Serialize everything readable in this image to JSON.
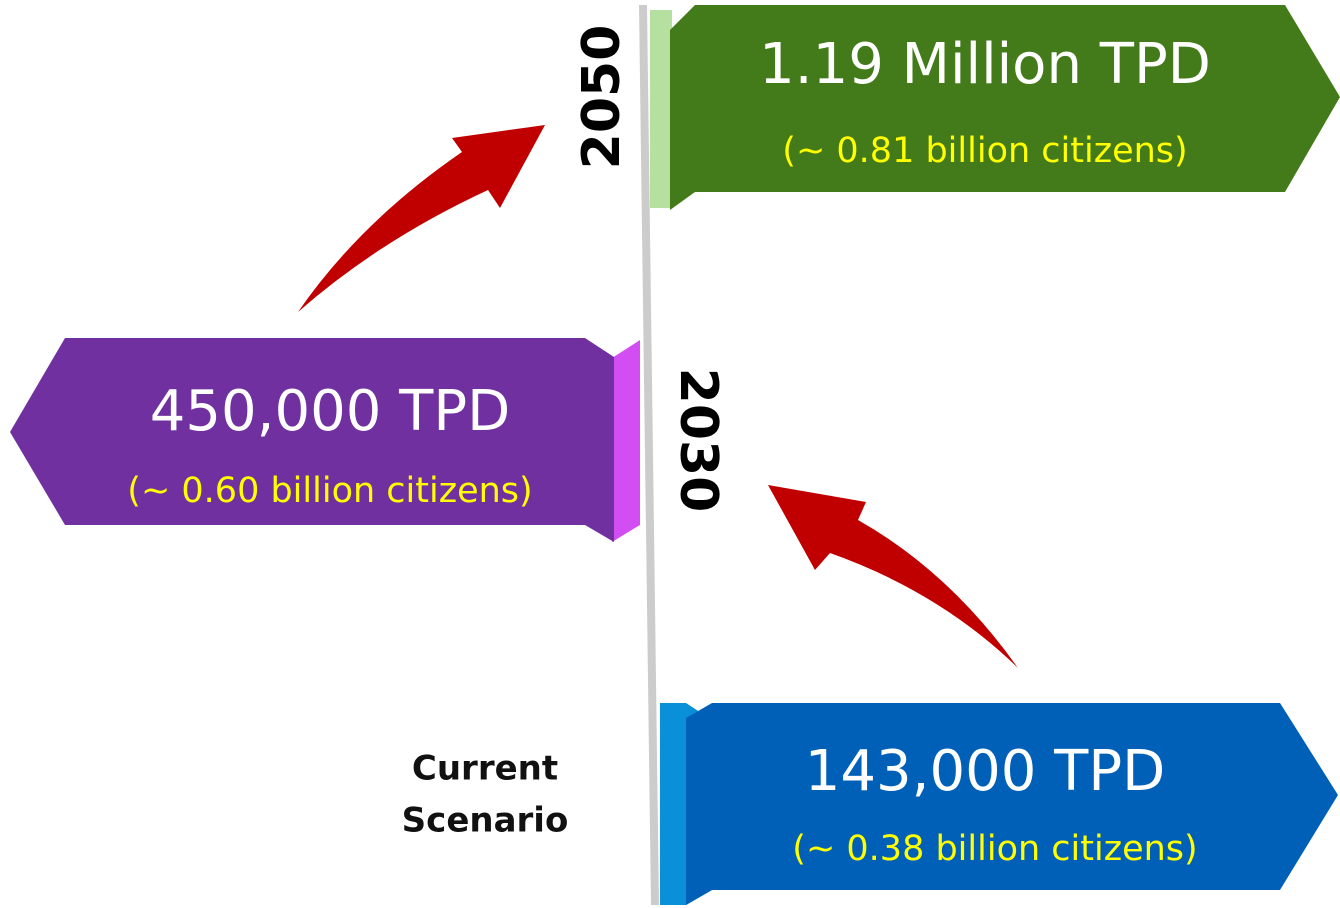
{
  "milestones": [
    {
      "year": "2050",
      "value": "1.19 Million TPD",
      "note": "(~ 0.81 billion citizens)"
    },
    {
      "year": "2030",
      "value": "450,000 TPD",
      "note": "(~ 0.60 billion citizens)"
    },
    {
      "label_lines": [
        "Current",
        "Scenario"
      ],
      "value": "143,000 TPD",
      "note": "(~ 0.38 billion citizens)"
    }
  ]
}
